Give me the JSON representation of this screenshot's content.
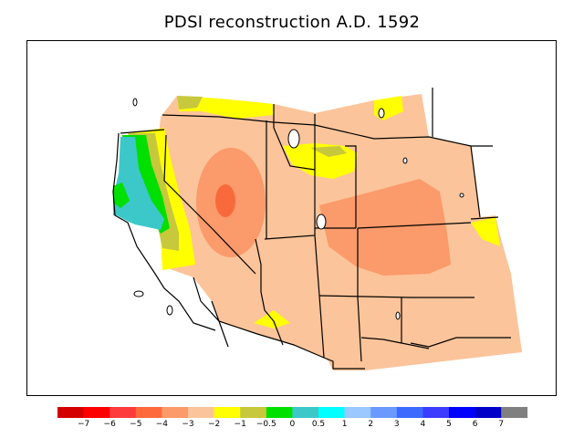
{
  "title": "PDSI reconstruction A.D. 1592",
  "map": {
    "description_colors": {
      "light_orange": "#fcc49a",
      "mid_orange": "#fb9a6a",
      "dark_orange": "#f86a3c",
      "yellow": "#ffff00",
      "olive": "#c8c83c",
      "green": "#00e000",
      "teal": "#3cc8c8"
    }
  },
  "legend": {
    "colors": [
      "#d40000",
      "#ff0000",
      "#ff3c3c",
      "#ff6a3c",
      "#fc9a6a",
      "#fcc49a",
      "#ffff00",
      "#c8c83c",
      "#00e000",
      "#3cc8c8",
      "#00ffff",
      "#9ac8ff",
      "#6a9aff",
      "#3c6aff",
      "#3c3cff",
      "#0000ff",
      "#0000c8",
      "#808080"
    ],
    "labels": [
      "−7",
      "−6",
      "−5",
      "−4",
      "−3",
      "−2",
      "−1",
      "−0.5",
      "0",
      "0.5",
      "1",
      "2",
      "3",
      "4",
      "5",
      "6",
      "7"
    ]
  }
}
